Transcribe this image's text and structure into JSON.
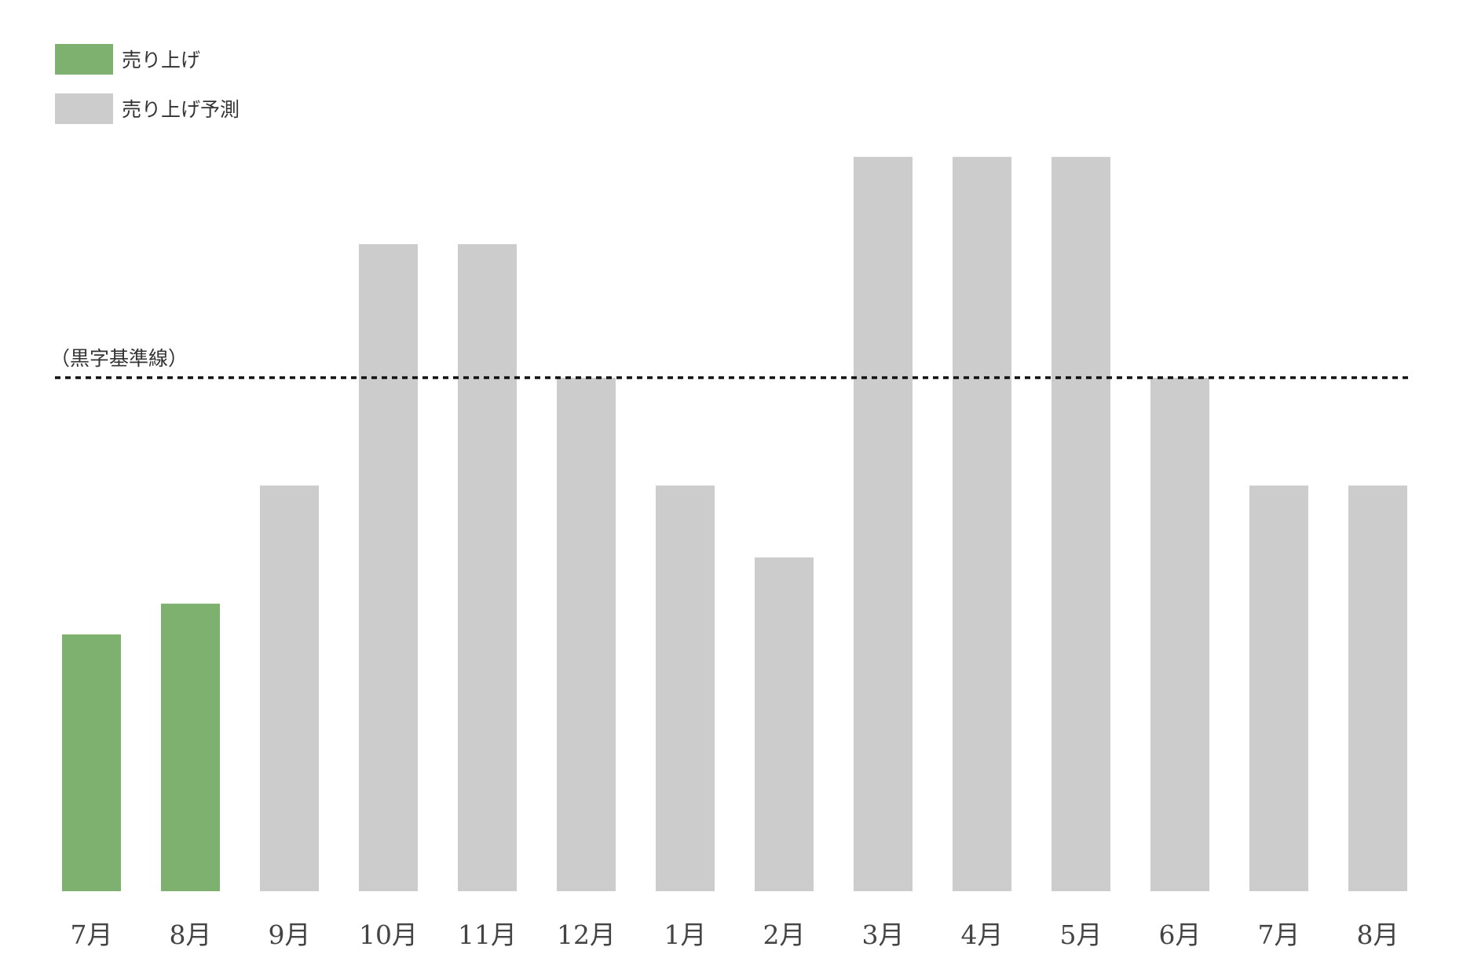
{
  "chart_data": {
    "type": "bar",
    "title": "",
    "xlabel": "",
    "ylabel": "",
    "categories": [
      "7月",
      "8月",
      "9月",
      "10月",
      "11月",
      "12月",
      "1月",
      "2月",
      "3月",
      "4月",
      "5月",
      "6月",
      "7月",
      "8月"
    ],
    "values": [
      50,
      56,
      79,
      126,
      126,
      100,
      79,
      65,
      143,
      143,
      143,
      100,
      79,
      79
    ],
    "series_type": [
      "actual",
      "actual",
      "forecast",
      "forecast",
      "forecast",
      "forecast",
      "forecast",
      "forecast",
      "forecast",
      "forecast",
      "forecast",
      "forecast",
      "forecast",
      "forecast"
    ],
    "legend": [
      {
        "name": "売り上げ",
        "color": "#7eb070",
        "key": "actual"
      },
      {
        "name": "売り上げ予測",
        "color": "#cccccc",
        "key": "forecast"
      }
    ],
    "legend_position": "top-left",
    "reference_line": {
      "label": "（黒字基準線）",
      "value": 100,
      "style": "dotted",
      "color": "#111111"
    },
    "ylim": [
      0,
      150
    ],
    "grid": false,
    "y_axis_visible": false
  }
}
